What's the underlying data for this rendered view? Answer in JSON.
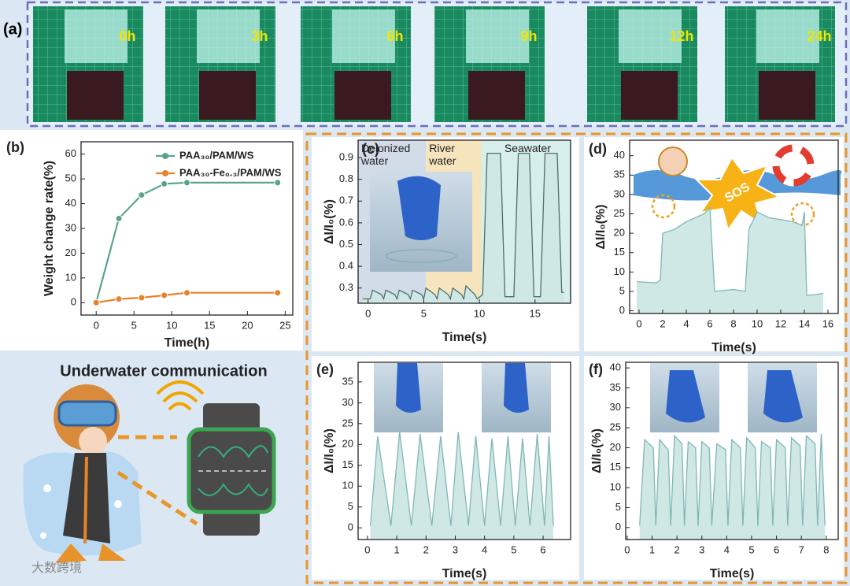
{
  "panel_a": {
    "label": "(a)",
    "times": [
      "0h",
      "3h",
      "6h",
      "9h",
      "12h",
      "24h"
    ]
  },
  "communication": {
    "title": "Underwater communication"
  },
  "watermark": "大数跨境",
  "chart_data": [
    {
      "type": "line",
      "label": "(b)",
      "xlabel": "Time(h)",
      "ylabel": "Weight change rate(%)",
      "x": [
        0,
        3,
        6,
        9,
        12,
        24
      ],
      "series": [
        {
          "name": "PAA₃₀/PAM/WS",
          "color": "#5aa58a",
          "values": [
            0,
            34,
            43.5,
            48,
            48.5,
            48.5
          ]
        },
        {
          "name": "PAA₃₀-Fe₀.₃/PAM/WS",
          "color": "#e8822a",
          "values": [
            0,
            1.5,
            2,
            3,
            4,
            4
          ]
        }
      ],
      "xlim": [
        -2,
        26
      ],
      "xticks": [
        0,
        5,
        10,
        15,
        20,
        25
      ],
      "ylim": [
        -5,
        65
      ],
      "yticks": [
        0,
        10,
        20,
        30,
        40,
        50,
        60
      ],
      "markers": true
    },
    {
      "type": "area",
      "label": "(c)",
      "xlabel": "Time(s)",
      "ylabel": "ΔI/I₀(%)",
      "x": [
        -0.5,
        0.2,
        0.4,
        1.2,
        1.4,
        1.6,
        2.4,
        2.6,
        2.8,
        3.6,
        3.8,
        4.0,
        4.8,
        5.0,
        5.2,
        6.0,
        6.2,
        6.4,
        7.2,
        7.4,
        7.6,
        8.4,
        8.6,
        8.8,
        9.6,
        9.8,
        10.3,
        10.7,
        11.9,
        12.3,
        13.1,
        13.5,
        14.5,
        14.9,
        15.5,
        15.9,
        17.0,
        17.4,
        17.6
      ],
      "values": [
        0.25,
        0.25,
        0.29,
        0.27,
        0.25,
        0.29,
        0.27,
        0.25,
        0.29,
        0.27,
        0.25,
        0.29,
        0.27,
        0.25,
        0.3,
        0.27,
        0.25,
        0.3,
        0.27,
        0.25,
        0.3,
        0.27,
        0.25,
        0.31,
        0.27,
        0.25,
        0.27,
        0.92,
        0.92,
        0.26,
        0.26,
        0.92,
        0.92,
        0.26,
        0.26,
        0.92,
        0.92,
        0.28,
        0.28
      ],
      "color": "#4f6e6c",
      "fill": "#cfe8e6",
      "regions": [
        {
          "name": "Deionized water",
          "span": [
            -0.9,
            5.2
          ],
          "color": "#d2dbe8"
        },
        {
          "name": "River water",
          "span": [
            5.2,
            10.2
          ],
          "color": "#f6e4bd"
        },
        {
          "name": "Seawater",
          "span": [
            10.2,
            18.2
          ],
          "color": "#d6eeec"
        }
      ],
      "xlim": [
        -0.9,
        18.2
      ],
      "xticks": [
        0,
        5,
        10,
        15
      ],
      "ylim": [
        0.23,
        0.98
      ],
      "yticks": [
        0.3,
        0.4,
        0.5,
        0.6,
        0.7,
        0.8,
        0.9
      ]
    },
    {
      "type": "area",
      "label": "(d)",
      "xlabel": "Time(s)",
      "ylabel": "ΔI/I₀(%)",
      "annotation": "SOS",
      "x": [
        -0.2,
        1.5,
        1.8,
        2.0,
        3,
        4,
        5.5,
        6,
        6.4,
        7,
        8,
        9,
        9.3,
        10,
        11,
        12,
        13,
        13.8,
        14,
        14.2,
        15,
        15.6
      ],
      "values": [
        7.5,
        7.2,
        8,
        20,
        21,
        23,
        25,
        26.5,
        5,
        5.2,
        5.5,
        5,
        21,
        25.5,
        24,
        23.5,
        23,
        22,
        25.5,
        4,
        4.2,
        4.5
      ],
      "color": "#7fb7b5",
      "fill": "#cfe8e6",
      "xlim": [
        -0.8,
        16.87
      ],
      "xticks": [
        0,
        2,
        4,
        6,
        8,
        10,
        12,
        14,
        16
      ],
      "ylim": [
        -0.7,
        44
      ],
      "yticks": [
        0,
        5,
        10,
        15,
        20,
        25,
        30,
        35,
        40
      ]
    },
    {
      "type": "area",
      "label": "(e)",
      "xlabel": "Time(s)",
      "ylabel": "ΔI/I₀(%)",
      "x": [
        0.1,
        0.35,
        0.8,
        1.1,
        1.5,
        1.8,
        2.2,
        2.5,
        2.85,
        3.1,
        3.45,
        3.7,
        4.0,
        4.25,
        4.55,
        4.8,
        5.05,
        5.3,
        5.55,
        5.8,
        6.05,
        6.2,
        6.35
      ],
      "values": [
        0.5,
        22,
        0.5,
        23,
        0.5,
        22.5,
        0.5,
        22,
        0.5,
        23,
        0.5,
        22,
        0.5,
        21.5,
        0.5,
        22,
        0.5,
        21.5,
        0.5,
        22.5,
        0.5,
        22,
        0.5
      ],
      "color": "#7fb7b5",
      "fill": "#cfe8e6",
      "xlim": [
        -0.32,
        6.94
      ],
      "xticks": [
        0,
        1,
        2,
        3,
        4,
        5,
        6
      ],
      "ylim": [
        -2.8,
        39.7
      ],
      "yticks": [
        0,
        5,
        10,
        15,
        20,
        25,
        30,
        35
      ]
    },
    {
      "type": "area",
      "label": "(f)",
      "xlabel": "Time(s)",
      "ylabel": "ΔI/I₀(%)",
      "x": [
        0.5,
        0.7,
        1.05,
        1.15,
        1.3,
        1.65,
        1.75,
        1.9,
        2.2,
        2.3,
        2.45,
        2.75,
        2.85,
        3.0,
        3.3,
        3.4,
        3.6,
        3.95,
        4.05,
        4.2,
        4.55,
        4.65,
        4.8,
        5.15,
        5.25,
        5.4,
        5.75,
        5.85,
        6.0,
        6.35,
        6.45,
        6.6,
        6.95,
        7.05,
        7.2,
        7.55,
        7.65,
        7.8,
        7.95
      ],
      "values": [
        0.5,
        22,
        20,
        0.5,
        22,
        19.5,
        0.5,
        23,
        21,
        0.5,
        21.5,
        20,
        0.5,
        21.5,
        20,
        0.5,
        21,
        19.5,
        0.5,
        22,
        20,
        0.5,
        22.5,
        20,
        0.5,
        21.5,
        20,
        0.5,
        22,
        20,
        0.5,
        22.5,
        20.5,
        0.5,
        23,
        21,
        0.5,
        23.5,
        0.5
      ],
      "color": "#7fb7b5",
      "fill": "#cfe8e6",
      "xlim": [
        -0.06,
        8.48
      ],
      "xticks": [
        0,
        1,
        2,
        3,
        4,
        5,
        6,
        7,
        8
      ],
      "ylim": [
        -3,
        41.4
      ],
      "yticks": [
        0,
        5,
        10,
        15,
        20,
        25,
        30,
        35,
        40
      ]
    }
  ]
}
